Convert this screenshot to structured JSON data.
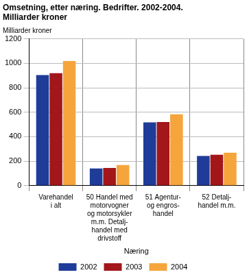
{
  "chart_data": {
    "type": "bar",
    "title": [
      "Omsetning, etter næring. Bedrifter. 2002-2004.",
      "Milliarder kroner"
    ],
    "y_label": "Milliarder kroner",
    "x_label": "Næring",
    "categories": [
      [
        "Varehandel",
        "i alt"
      ],
      [
        "50 Handel med",
        "motorvogner",
        "og motorsykler",
        "m.m. Detalj-",
        "handel med",
        "drivstoff"
      ],
      [
        "51 Agentur-",
        "og engros-",
        "handel"
      ],
      [
        "52 Detalj-",
        "handel m.m."
      ]
    ],
    "series": [
      {
        "name": "2002",
        "color": "#1f3c99",
        "values": [
          905,
          140,
          518,
          243
        ]
      },
      {
        "name": "2003",
        "color": "#a3161a",
        "values": [
          920,
          145,
          520,
          253
        ]
      },
      {
        "name": "2004",
        "color": "#f5a53c",
        "values": [
          1020,
          168,
          583,
          270
        ]
      }
    ],
    "ylim": [
      0,
      1200
    ],
    "yticks": [
      0,
      200,
      400,
      600,
      800,
      1000,
      1200
    ],
    "grid": true,
    "legend": "bottom"
  }
}
